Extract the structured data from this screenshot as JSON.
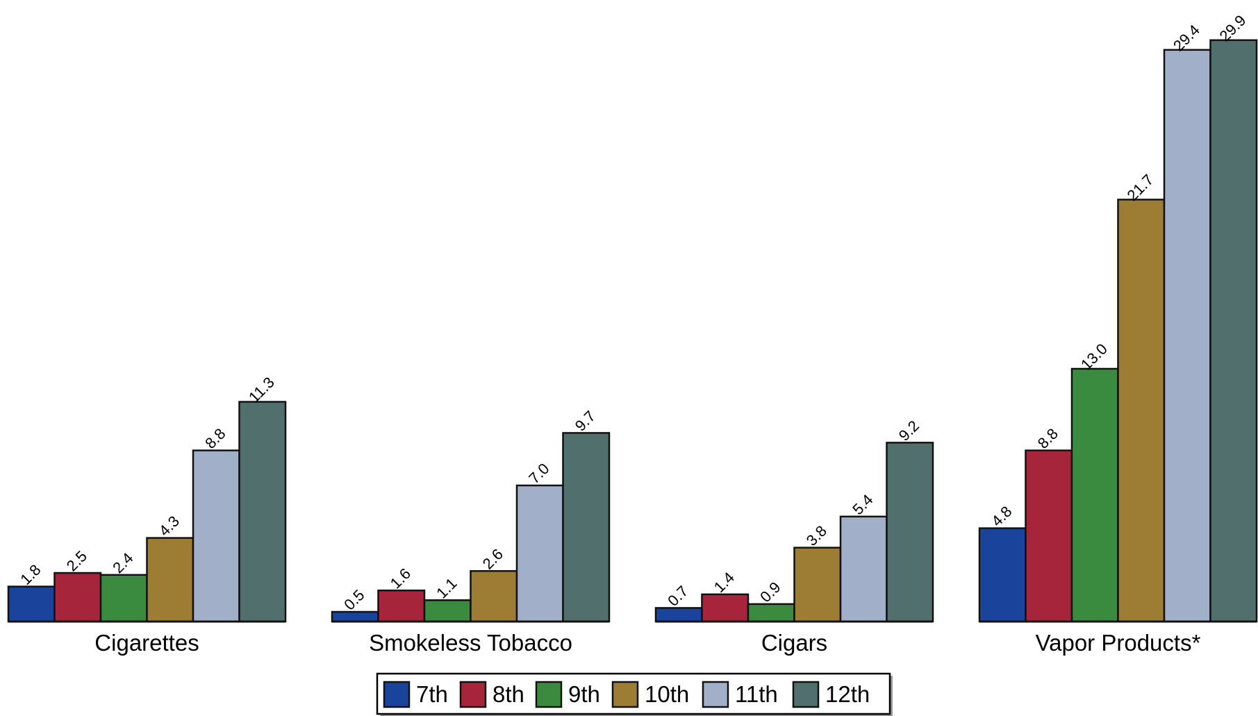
{
  "chart_data": {
    "type": "bar",
    "categories": [
      "Cigarettes",
      "Smokeless Tobacco",
      "Cigars",
      "Vapor Products*"
    ],
    "series": [
      {
        "name": "7th",
        "color": "#1a449c",
        "values": [
          1.8,
          0.5,
          0.7,
          4.8
        ]
      },
      {
        "name": "8th",
        "color": "#a6253a",
        "values": [
          2.5,
          1.6,
          1.4,
          8.8
        ]
      },
      {
        "name": "9th",
        "color": "#3a8a40",
        "values": [
          2.4,
          1.1,
          0.9,
          13.0
        ]
      },
      {
        "name": "10th",
        "color": "#9c7d33",
        "values": [
          4.3,
          2.6,
          3.8,
          21.7
        ]
      },
      {
        "name": "11th",
        "color": "#a2afc8",
        "values": [
          8.8,
          7.0,
          5.4,
          29.4
        ]
      },
      {
        "name": "12th",
        "color": "#51706d",
        "values": [
          11.3,
          9.7,
          9.2,
          29.9
        ]
      }
    ],
    "data_labels": [
      [
        "1.8",
        "0.5",
        "0.7",
        "4.8"
      ],
      [
        "2.5",
        "1.6",
        "1.4",
        "8.8"
      ],
      [
        "2.4",
        "1.1",
        "0.9",
        "13.0"
      ],
      [
        "4.3",
        "2.6",
        "3.8",
        "21.7"
      ],
      [
        "8.8",
        "7.0",
        "5.4",
        "29.4"
      ],
      [
        "11.3",
        "9.7",
        "9.2",
        "29.9"
      ]
    ],
    "ylim": [
      0,
      30
    ],
    "grid": false,
    "legend_position": "bottom-center"
  }
}
